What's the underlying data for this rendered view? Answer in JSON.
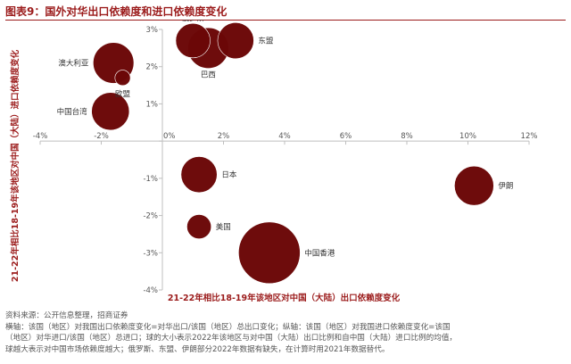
{
  "figure": {
    "title": "图表9：国外对华出口依赖度和进口依赖度变化",
    "source": "资料来源：公开信息整理，招商证券",
    "notes": [
      "横轴：该国（地区）对我国出口依赖度变化=对华出口/该国（地区）总出口变化；纵轴：该国（地区）对我国进口依赖度变化=该国",
      "（地区）对华进口/该国（地区）总进口；球的大小表示2022年该地区与对中国（大陆）出口比例和自中国（大陆）进口比例的均值，",
      "球越大表示对中国市场依赖度越大；俄罗斯、东盟、伊朗部分2022年数据有缺失，在计算时用2021年数据替代。"
    ]
  },
  "colors": {
    "bubble": "#6b0707",
    "accent": "#9b1b1b",
    "axis": "#bfbfbf",
    "text": "#333333"
  },
  "chart_data": {
    "type": "scatter",
    "xlabel": "21-22年相比18-19年该地区对中国（大陆）出口依赖度变化",
    "ylabel": "21-22年相比18-19年该地区对中国（大陆）进口依赖度变化",
    "xlim": [
      -4,
      12
    ],
    "ylim": [
      -4,
      3
    ],
    "x_ticks": [
      "-4%",
      "-2%",
      "0%",
      "2%",
      "4%",
      "6%",
      "8%",
      "10%",
      "12%"
    ],
    "y_ticks": [
      "3%",
      "2%",
      "1%",
      "0%",
      "-1%",
      "-2%",
      "-3%",
      "-4%"
    ],
    "x_tick_values": [
      -4,
      -2,
      0,
      2,
      4,
      6,
      8,
      10,
      12
    ],
    "y_tick_values": [
      3,
      2,
      1,
      0,
      -1,
      -2,
      -3,
      -4
    ],
    "grid": false,
    "points": [
      {
        "name": "俄罗斯",
        "x": 1.0,
        "y": 2.7,
        "size": 10
      },
      {
        "name": "巴西",
        "x": 1.5,
        "y": 2.5,
        "size": 14
      },
      {
        "name": "东盟",
        "x": 2.4,
        "y": 2.7,
        "size": 11
      },
      {
        "name": "澳大利亚",
        "x": -1.6,
        "y": 2.1,
        "size": 14
      },
      {
        "name": "欧盟",
        "x": -1.3,
        "y": 1.7,
        "size": 2
      },
      {
        "name": "中国台湾",
        "x": -1.7,
        "y": 0.8,
        "size": 12
      },
      {
        "name": "日本",
        "x": 1.2,
        "y": -0.9,
        "size": 11
      },
      {
        "name": "美国",
        "x": 1.2,
        "y": -2.3,
        "size": 5
      },
      {
        "name": "中国香港",
        "x": 3.5,
        "y": -3.0,
        "size": 32
      },
      {
        "name": "伊朗",
        "x": 10.2,
        "y": -1.2,
        "size": 13
      }
    ]
  }
}
